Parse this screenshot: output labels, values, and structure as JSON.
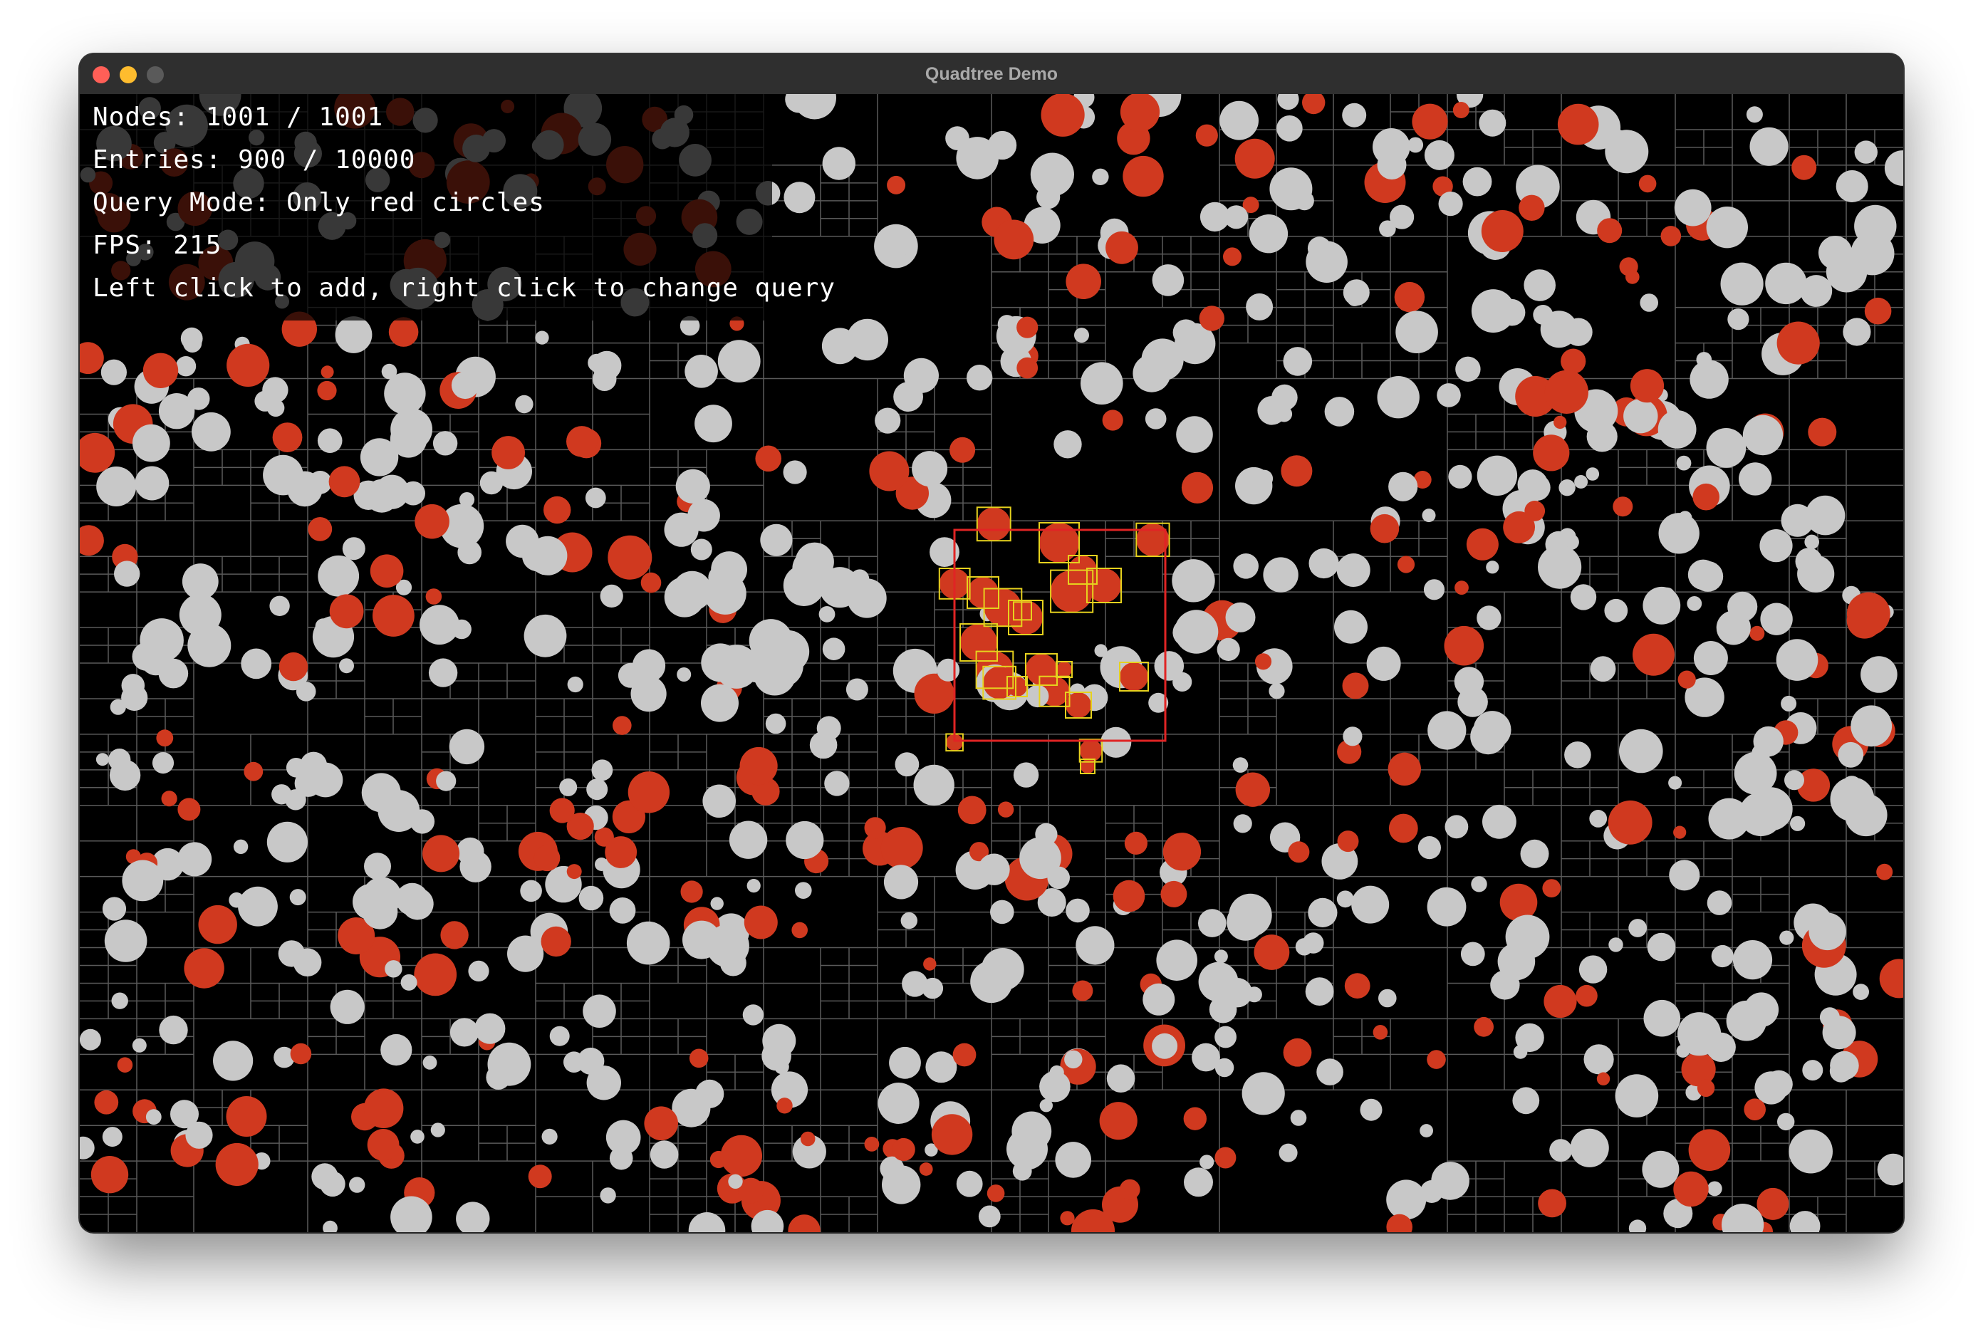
{
  "window": {
    "title": "Quadtree Demo"
  },
  "hud": {
    "nodes_label": "Nodes: 1001 / 1001",
    "entries_label": "Entries: 900 / 10000",
    "query_mode_label": "Query Mode: Only red circles",
    "fps_label": "FPS: 215",
    "instructions": "Left click to add, right click to change query"
  },
  "colors": {
    "red_circle": "#d0391f",
    "gray_circle": "#c8c8c8",
    "grid_line": "#5a5a5a",
    "query_rect": "#e02424",
    "match_box": "#e6d21e",
    "background": "#000000"
  },
  "icons": [
    "close-dot",
    "minimize-dot",
    "zoom-dot-disabled"
  ]
}
